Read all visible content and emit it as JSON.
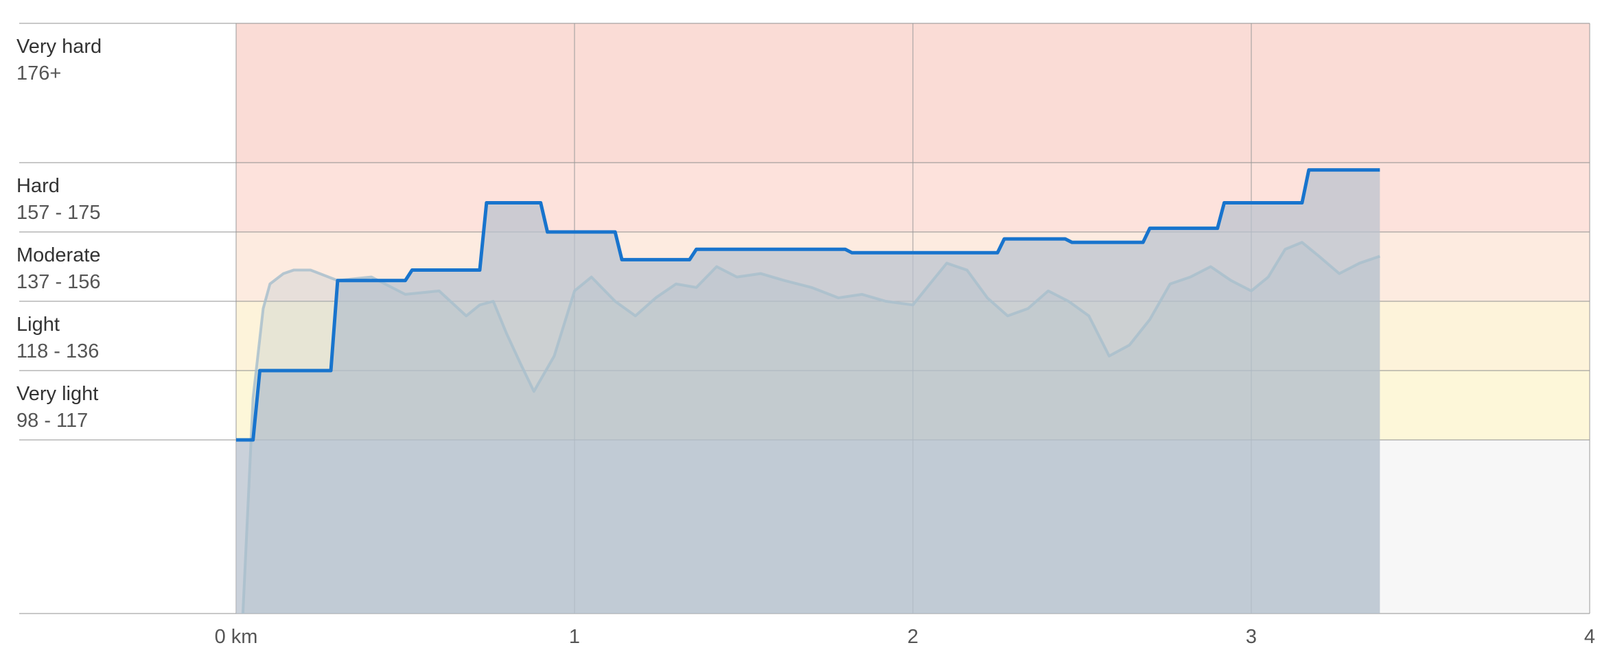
{
  "chart_data": {
    "type": "line",
    "title": "",
    "xlabel": "",
    "ylabel": "",
    "x_unit": "km",
    "xlim": [
      0,
      4
    ],
    "x_ticks": [
      {
        "value": 0,
        "label": "0 km"
      },
      {
        "value": 1,
        "label": "1"
      },
      {
        "value": 2,
        "label": "2"
      },
      {
        "value": 3,
        "label": "3"
      },
      {
        "value": 4,
        "label": "4"
      }
    ],
    "ylim": [
      73,
      197
    ],
    "grid": true,
    "legend": "none",
    "zones": [
      {
        "id": "very-hard",
        "name": "Very hard",
        "range": "176+",
        "min": 176,
        "max": 197,
        "color": "#fadcd6"
      },
      {
        "id": "hard",
        "name": "Hard",
        "range": "157 - 175",
        "min": 157,
        "max": 176,
        "color": "#fde2dc"
      },
      {
        "id": "moderate",
        "name": "Moderate",
        "range": "137 - 156",
        "min": 137,
        "max": 157,
        "color": "#fdebe0"
      },
      {
        "id": "light",
        "name": "Light",
        "range": "118 - 136",
        "min": 118,
        "max": 137,
        "color": "#fdf3da"
      },
      {
        "id": "very-light",
        "name": "Very light",
        "range": "98 - 117",
        "min": 98,
        "max": 118,
        "color": "#fdf7d9"
      },
      {
        "id": "below",
        "name": "",
        "range": "",
        "min": 73,
        "max": 98,
        "color": "#f7f7f7"
      }
    ],
    "series": [
      {
        "id": "heart-rate",
        "color": "#a9bfcc",
        "opacity": 0.45,
        "points": [
          [
            0.02,
            73
          ],
          [
            0.05,
            110
          ],
          [
            0.08,
            135
          ],
          [
            0.1,
            142
          ],
          [
            0.14,
            145
          ],
          [
            0.17,
            146
          ],
          [
            0.22,
            146
          ],
          [
            0.3,
            143
          ],
          [
            0.4,
            144
          ],
          [
            0.5,
            139
          ],
          [
            0.6,
            140
          ],
          [
            0.68,
            133
          ],
          [
            0.72,
            136
          ],
          [
            0.76,
            137
          ],
          [
            0.8,
            128
          ],
          [
            0.84,
            120
          ],
          [
            0.88,
            112
          ],
          [
            0.94,
            122
          ],
          [
            1.0,
            140
          ],
          [
            1.05,
            144
          ],
          [
            1.12,
            137
          ],
          [
            1.18,
            133
          ],
          [
            1.24,
            138
          ],
          [
            1.3,
            142
          ],
          [
            1.36,
            141
          ],
          [
            1.42,
            147
          ],
          [
            1.48,
            144
          ],
          [
            1.55,
            145
          ],
          [
            1.62,
            143
          ],
          [
            1.7,
            141
          ],
          [
            1.78,
            138
          ],
          [
            1.85,
            139
          ],
          [
            1.92,
            137
          ],
          [
            2.0,
            136
          ],
          [
            2.05,
            142
          ],
          [
            2.1,
            148
          ],
          [
            2.16,
            146
          ],
          [
            2.22,
            138
          ],
          [
            2.28,
            133
          ],
          [
            2.34,
            135
          ],
          [
            2.4,
            140
          ],
          [
            2.46,
            137
          ],
          [
            2.52,
            133
          ],
          [
            2.58,
            122
          ],
          [
            2.64,
            125
          ],
          [
            2.7,
            132
          ],
          [
            2.76,
            142
          ],
          [
            2.82,
            144
          ],
          [
            2.88,
            147
          ],
          [
            2.94,
            143
          ],
          [
            3.0,
            140
          ],
          [
            3.05,
            144
          ],
          [
            3.1,
            152
          ],
          [
            3.15,
            154
          ],
          [
            3.2,
            150
          ],
          [
            3.26,
            145
          ],
          [
            3.32,
            148
          ],
          [
            3.38,
            150
          ]
        ]
      },
      {
        "id": "heart-rate-zone-step",
        "color": "#1874cd",
        "points": [
          [
            0.0,
            98
          ],
          [
            0.05,
            98
          ],
          [
            0.07,
            118
          ],
          [
            0.28,
            118
          ],
          [
            0.3,
            143
          ],
          [
            0.5,
            143
          ],
          [
            0.52,
            146
          ],
          [
            0.72,
            146
          ],
          [
            0.74,
            165
          ],
          [
            0.9,
            165
          ],
          [
            0.92,
            157
          ],
          [
            1.12,
            157
          ],
          [
            1.14,
            149
          ],
          [
            1.34,
            149
          ],
          [
            1.36,
            152
          ],
          [
            1.8,
            152
          ],
          [
            1.82,
            151
          ],
          [
            2.25,
            151
          ],
          [
            2.27,
            155
          ],
          [
            2.45,
            155
          ],
          [
            2.47,
            154
          ],
          [
            2.68,
            154
          ],
          [
            2.7,
            158
          ],
          [
            2.9,
            158
          ],
          [
            2.92,
            165
          ],
          [
            3.15,
            165
          ],
          [
            3.17,
            174
          ],
          [
            3.38,
            174
          ]
        ]
      }
    ]
  }
}
